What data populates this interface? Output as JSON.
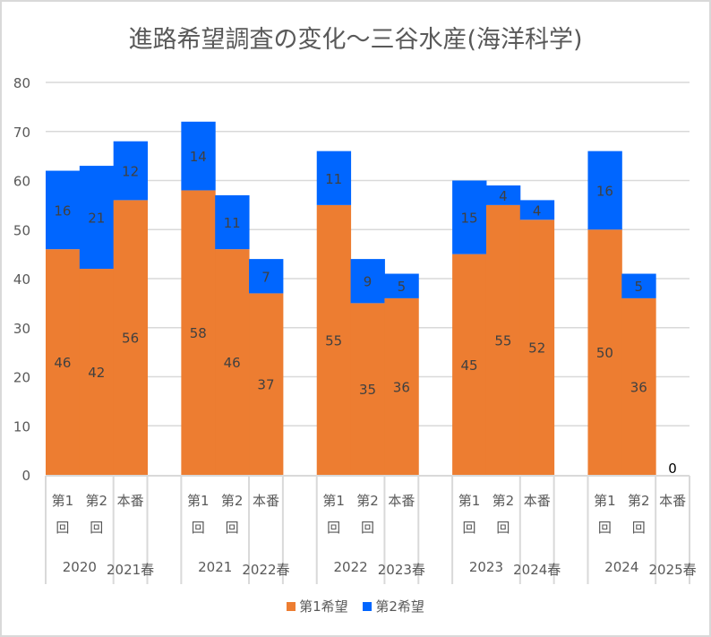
{
  "chart_data": {
    "type": "bar",
    "stacked": true,
    "title": "進路希望調査の変化～三谷水産(海洋科学)",
    "xlabel": "",
    "ylabel": "",
    "ylim": [
      0,
      80
    ],
    "yticks": [
      0,
      10,
      20,
      30,
      40,
      50,
      60,
      70,
      80
    ],
    "grid": true,
    "legend_position": "bottom",
    "groups": [
      {
        "year": "2020",
        "final": "2021春"
      },
      {
        "year": "2021",
        "final": "2022春"
      },
      {
        "year": "2022",
        "final": "2023春"
      },
      {
        "year": "2023",
        "final": "2024春"
      },
      {
        "year": "2024",
        "final": "2025春"
      }
    ],
    "sub_labels": [
      [
        "第1",
        "回"
      ],
      [
        "第2",
        "回"
      ],
      [
        "本番"
      ]
    ],
    "series": [
      {
        "name": "第1希望",
        "color": "#ED7D31",
        "values": [
          [
            46,
            42,
            56
          ],
          [
            58,
            46,
            37
          ],
          [
            55,
            35,
            36
          ],
          [
            45,
            55,
            52
          ],
          [
            50,
            36,
            null
          ]
        ]
      },
      {
        "name": "第2希望",
        "color": "#0066FF",
        "values": [
          [
            16,
            21,
            12
          ],
          [
            14,
            11,
            7
          ],
          [
            11,
            9,
            5
          ],
          [
            15,
            4,
            4
          ],
          [
            16,
            5,
            0
          ]
        ]
      }
    ],
    "point_labels": [
      [
        [
          "46",
          "16"
        ],
        [
          "42",
          "21"
        ],
        [
          "56",
          "12"
        ]
      ],
      [
        [
          "58",
          "14"
        ],
        [
          "46",
          "11"
        ],
        [
          "37",
          "7"
        ]
      ],
      [
        [
          "55",
          "11"
        ],
        [
          "35",
          "9"
        ],
        [
          "36",
          "5"
        ]
      ],
      [
        [
          "45",
          "15"
        ],
        [
          "55",
          "4"
        ],
        [
          "52",
          "4"
        ]
      ],
      [
        [
          "50",
          "16"
        ],
        [
          "36",
          "5"
        ],
        [
          "",
          "0"
        ]
      ]
    ]
  }
}
